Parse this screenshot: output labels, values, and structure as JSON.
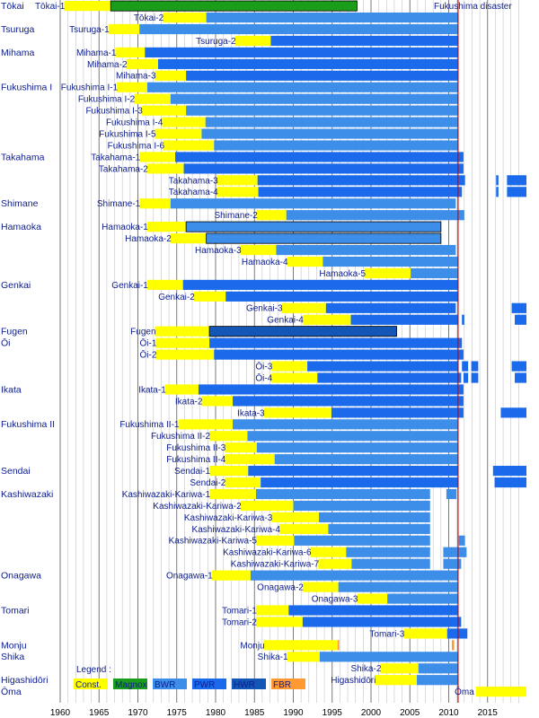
{
  "chart_data": {
    "type": "timeline",
    "xlim": [
      1960,
      2020
    ],
    "x_ticks": [
      1960,
      1965,
      1970,
      1975,
      1980,
      1985,
      1990,
      1995,
      2000,
      2005,
      2010,
      2015
    ],
    "grid": "vertical",
    "event": {
      "label": "Fukushima disaster",
      "x": 2011.2,
      "color": "#d00000"
    },
    "legend": {
      "title": "Legend :",
      "position": "bottom-left",
      "entries": [
        {
          "label": "Const.",
          "color": "#ffff00"
        },
        {
          "label": "Magnox",
          "color": "#1a9d1a"
        },
        {
          "label": "BWR",
          "color": "#3d8ee9"
        },
        {
          "label": "PWR",
          "color": "#1a6aeb"
        },
        {
          "label": "HWR",
          "color": "#1456b6"
        },
        {
          "label": "FBR",
          "color": "#ff9a33"
        }
      ]
    },
    "sites": [
      {
        "name": "Tōkai",
        "row": 0
      },
      {
        "name": "Tsuruga",
        "row": 2
      },
      {
        "name": "Mihama",
        "row": 4
      },
      {
        "name": "Fukushima I",
        "row": 7
      },
      {
        "name": "Takahama",
        "row": 13
      },
      {
        "name": "Shimane",
        "row": 17
      },
      {
        "name": "Hamaoka",
        "row": 19
      },
      {
        "name": "Genkai",
        "row": 24
      },
      {
        "name": "Fugen",
        "row": 28
      },
      {
        "name": "Ōi",
        "row": 29
      },
      {
        "name": "Ikata",
        "row": 33
      },
      {
        "name": "Fukushima II",
        "row": 36
      },
      {
        "name": "Sendai",
        "row": 40
      },
      {
        "name": "Kashiwazaki",
        "row": 42
      },
      {
        "name": "Onagawa",
        "row": 49
      },
      {
        "name": "Tomari",
        "row": 52
      },
      {
        "name": "Monju",
        "row": 55
      },
      {
        "name": "Shika",
        "row": 56
      },
      {
        "name": "Higashidōri",
        "row": 58
      },
      {
        "name": "Ōma",
        "row": 59
      }
    ],
    "units": [
      {
        "name": "Tōkai-1",
        "row": 0,
        "const": [
          1960.5,
          1966.5
        ],
        "ops": [
          [
            1966.5,
            1998.2
          ]
        ],
        "type": "Magnox",
        "dark": true
      },
      {
        "name": "Tōkai-2",
        "row": 1,
        "const": [
          1973.2,
          1978.8
        ],
        "ops": [
          [
            1978.8,
            2011.2
          ]
        ],
        "type": "BWR"
      },
      {
        "name": "Tsuruga-1",
        "row": 2,
        "const": [
          1966.2,
          1970.2
        ],
        "ops": [
          [
            1970.2,
            2011.2
          ]
        ],
        "type": "BWR"
      },
      {
        "name": "Tsuruga-2",
        "row": 3,
        "const": [
          1982.5,
          1987.1
        ],
        "ops": [
          [
            1987.1,
            2011.2
          ]
        ],
        "type": "PWR"
      },
      {
        "name": "Mihama-1",
        "row": 4,
        "const": [
          1967.1,
          1970.9
        ],
        "ops": [
          [
            1970.9,
            2011.2
          ]
        ],
        "type": "PWR"
      },
      {
        "name": "Mihama-2",
        "row": 5,
        "const": [
          1968.5,
          1972.6
        ],
        "ops": [
          [
            1972.6,
            2011.2
          ]
        ],
        "type": "PWR"
      },
      {
        "name": "Mihama-3",
        "row": 6,
        "const": [
          1972.2,
          1976.2
        ],
        "ops": [
          [
            1976.2,
            2011.2
          ]
        ],
        "type": "PWR"
      },
      {
        "name": "Fukushima I-1",
        "row": 7,
        "const": [
          1967.3,
          1971.2
        ],
        "ops": [
          [
            1971.2,
            2011.2
          ]
        ],
        "type": "BWR"
      },
      {
        "name": "Fukushima I-2",
        "row": 8,
        "const": [
          1969.5,
          1974.2
        ],
        "ops": [
          [
            1974.2,
            2011.2
          ]
        ],
        "type": "BWR"
      },
      {
        "name": "Fukushima I-3",
        "row": 9,
        "const": [
          1970.5,
          1976.2
        ],
        "ops": [
          [
            1976.2,
            2011.2
          ]
        ],
        "type": "BWR"
      },
      {
        "name": "Fukushima I-4",
        "row": 10,
        "const": [
          1973.1,
          1978.7
        ],
        "ops": [
          [
            1978.7,
            2011.2
          ]
        ],
        "type": "BWR"
      },
      {
        "name": "Fukushima I-5",
        "row": 11,
        "const": [
          1972.2,
          1978.2
        ],
        "ops": [
          [
            1978.2,
            2011.2
          ]
        ],
        "type": "BWR"
      },
      {
        "name": "Fukushima I-6",
        "row": 12,
        "const": [
          1973.3,
          1979.8
        ],
        "ops": [
          [
            1979.8,
            2011.2
          ]
        ],
        "type": "BWR"
      },
      {
        "name": "Takahama-1",
        "row": 13,
        "const": [
          1970.2,
          1974.8
        ],
        "ops": [
          [
            1974.8,
            2011.9
          ]
        ],
        "type": "PWR"
      },
      {
        "name": "Takahama-2",
        "row": 14,
        "const": [
          1971.2,
          1975.9
        ],
        "ops": [
          [
            1975.9,
            2011.9
          ]
        ],
        "type": "PWR"
      },
      {
        "name": "Takahama-3",
        "row": 15,
        "const": [
          1980.2,
          1985.4
        ],
        "ops": [
          [
            1985.4,
            2012.1
          ],
          [
            2016.1,
            2016.4
          ],
          [
            2017.5,
            2020
          ]
        ],
        "type": "PWR"
      },
      {
        "name": "Takahama-4",
        "row": 16,
        "const": [
          1980.2,
          1985.5
        ],
        "ops": [
          [
            1985.5,
            2011.7
          ],
          [
            2016.1,
            2016.4
          ],
          [
            2017.5,
            2020
          ]
        ],
        "type": "PWR"
      },
      {
        "name": "Shimane-1",
        "row": 17,
        "const": [
          1970.2,
          1974.2
        ],
        "ops": [
          [
            1974.2,
            2010.9
          ]
        ],
        "type": "BWR"
      },
      {
        "name": "Shimane-2",
        "row": 18,
        "const": [
          1985.3,
          1989.1
        ],
        "ops": [
          [
            1989.1,
            2012.0
          ]
        ],
        "type": "BWR"
      },
      {
        "name": "Hamaoka-1",
        "row": 19,
        "const": [
          1971.2,
          1976.2
        ],
        "ops": [
          [
            1976.2,
            2009.0
          ]
        ],
        "type": "BWR",
        "dark": true
      },
      {
        "name": "Hamaoka-2",
        "row": 20,
        "const": [
          1974.2,
          1978.8
        ],
        "ops": [
          [
            1978.8,
            2009.0
          ]
        ],
        "type": "BWR",
        "dark": true
      },
      {
        "name": "Hamaoka-3",
        "row": 21,
        "const": [
          1983.2,
          1987.8
        ],
        "ops": [
          [
            1987.8,
            2010.9
          ]
        ],
        "type": "BWR"
      },
      {
        "name": "Hamaoka-4",
        "row": 22,
        "const": [
          1989.2,
          1993.8
        ],
        "ops": [
          [
            1993.8,
            2011.2
          ]
        ],
        "type": "BWR"
      },
      {
        "name": "Hamaoka-5",
        "row": 23,
        "const": [
          1999.2,
          2005.1
        ],
        "ops": [
          [
            2005.1,
            2011.2
          ]
        ],
        "type": "BWR"
      },
      {
        "name": "Genkai-1",
        "row": 24,
        "const": [
          1971.2,
          1975.8
        ],
        "ops": [
          [
            1975.8,
            2011.2
          ]
        ],
        "type": "PWR"
      },
      {
        "name": "Genkai-2",
        "row": 25,
        "const": [
          1977.2,
          1981.3
        ],
        "ops": [
          [
            1981.3,
            2011.2
          ]
        ],
        "type": "PWR"
      },
      {
        "name": "Genkai-3",
        "row": 26,
        "const": [
          1988.5,
          1994.2
        ],
        "ops": [
          [
            1994.2,
            2010.9
          ],
          [
            2018.1,
            2020
          ]
        ],
        "type": "PWR"
      },
      {
        "name": "Genkai-4",
        "row": 27,
        "const": [
          1991.2,
          1997.4
        ],
        "ops": [
          [
            1997.4,
            2011.2
          ],
          [
            2011.7,
            2012.0
          ],
          [
            2018.5,
            2020
          ]
        ],
        "type": "PWR"
      },
      {
        "name": "Fugen",
        "row": 28,
        "const": [
          1972.2,
          1979.2
        ],
        "ops": [
          [
            1979.2,
            2003.3
          ]
        ],
        "type": "HWR",
        "dark": true
      },
      {
        "name": "Ōi-1",
        "row": 29,
        "const": [
          1972.3,
          1979.2
        ],
        "ops": [
          [
            1979.2,
            2011.7
          ]
        ],
        "type": "PWR"
      },
      {
        "name": "Ōi-2",
        "row": 30,
        "const": [
          1972.3,
          1979.8
        ],
        "ops": [
          [
            1979.8,
            2011.9
          ]
        ],
        "type": "PWR"
      },
      {
        "name": "Ōi-3",
        "row": 31,
        "const": [
          1987.2,
          1991.8
        ],
        "ops": [
          [
            1991.8,
            2011.2
          ],
          [
            2011.7,
            2012.5
          ],
          [
            2012.9,
            2013.8
          ],
          [
            2018.1,
            2020
          ]
        ],
        "type": "PWR"
      },
      {
        "name": "Ōi-4",
        "row": 32,
        "const": [
          1987.2,
          1993.1
        ],
        "ops": [
          [
            1993.1,
            2011.6
          ],
          [
            2011.9,
            2012.5
          ],
          [
            2012.9,
            2013.8
          ],
          [
            2018.5,
            2020
          ]
        ],
        "type": "PWR"
      },
      {
        "name": "Ikata-1",
        "row": 33,
        "const": [
          1973.5,
          1977.8
        ],
        "ops": [
          [
            1977.8,
            2011.9
          ]
        ],
        "type": "PWR"
      },
      {
        "name": "Ikata-2",
        "row": 34,
        "const": [
          1978.2,
          1982.2
        ],
        "ops": [
          [
            1982.2,
            2011.9
          ]
        ],
        "type": "PWR"
      },
      {
        "name": "Ikata-3",
        "row": 35,
        "const": [
          1986.2,
          1994.9
        ],
        "ops": [
          [
            1994.9,
            2011.9
          ],
          [
            2016.7,
            2020
          ]
        ],
        "type": "PWR"
      },
      {
        "name": "Fukushima II-1",
        "row": 36,
        "const": [
          1975.2,
          1982.2
        ],
        "ops": [
          [
            1982.2,
            2011.2
          ]
        ],
        "type": "BWR"
      },
      {
        "name": "Fukushima II-2",
        "row": 37,
        "const": [
          1979.2,
          1984.1
        ],
        "ops": [
          [
            1984.1,
            2011.2
          ]
        ],
        "type": "BWR"
      },
      {
        "name": "Fukushima II-3",
        "row": 38,
        "const": [
          1981.2,
          1985.3
        ],
        "ops": [
          [
            1985.3,
            2011.2
          ]
        ],
        "type": "BWR"
      },
      {
        "name": "Fukushima II-4",
        "row": 39,
        "const": [
          1981.2,
          1987.6
        ],
        "ops": [
          [
            1987.6,
            2011.2
          ]
        ],
        "type": "BWR"
      },
      {
        "name": "Sendai-1",
        "row": 40,
        "const": [
          1979.2,
          1984.2
        ],
        "ops": [
          [
            1984.2,
            2011.2
          ],
          [
            2015.7,
            2020
          ]
        ],
        "type": "PWR"
      },
      {
        "name": "Sendai-2",
        "row": 41,
        "const": [
          1981.2,
          1985.8
        ],
        "ops": [
          [
            1985.8,
            2011.2
          ],
          [
            2015.9,
            2020
          ]
        ],
        "type": "PWR"
      },
      {
        "name": "Kashiwazaki-Kariwa-1",
        "row": 42,
        "const": [
          1979.2,
          1985.2
        ],
        "ops": [
          [
            1985.2,
            2007.6
          ],
          [
            2009.7,
            2011.0
          ]
        ],
        "type": "BWR"
      },
      {
        "name": "Kashiwazaki-Kariwa-2",
        "row": 43,
        "const": [
          1983.2,
          1990.0
        ],
        "ops": [
          [
            1990.0,
            2007.6
          ]
        ],
        "type": "BWR"
      },
      {
        "name": "Kashiwazaki-Kariwa-3",
        "row": 44,
        "const": [
          1987.2,
          1993.3
        ],
        "ops": [
          [
            1993.3,
            2007.6
          ]
        ],
        "type": "BWR"
      },
      {
        "name": "Kashiwazaki-Kariwa-4",
        "row": 45,
        "const": [
          1988.2,
          1994.5
        ],
        "ops": [
          [
            1994.5,
            2007.6
          ]
        ],
        "type": "BWR"
      },
      {
        "name": "Kashiwazaki-Kariwa-5",
        "row": 46,
        "const": [
          1985.2,
          1990.1
        ],
        "ops": [
          [
            1990.1,
            2007.6
          ],
          [
            2011.3,
            2012.1
          ]
        ],
        "type": "BWR"
      },
      {
        "name": "Kashiwazaki-Kariwa-6",
        "row": 47,
        "const": [
          1992.2,
          1996.8
        ],
        "ops": [
          [
            1996.8,
            2007.6
          ],
          [
            2009.3,
            2012.3
          ]
        ],
        "type": "BWR"
      },
      {
        "name": "Kashiwazaki-Kariwa-7",
        "row": 48,
        "const": [
          1993.2,
          1997.5
        ],
        "ops": [
          [
            1997.5,
            2007.6
          ],
          [
            2009.3,
            2011.6
          ]
        ],
        "type": "BWR"
      },
      {
        "name": "Onagawa-1",
        "row": 49,
        "const": [
          1979.5,
          1984.5
        ],
        "ops": [
          [
            1984.5,
            2011.2
          ]
        ],
        "type": "BWR"
      },
      {
        "name": "Onagawa-2",
        "row": 50,
        "const": [
          1991.2,
          1995.8
        ],
        "ops": [
          [
            1995.8,
            2011.2
          ]
        ],
        "type": "BWR"
      },
      {
        "name": "Onagawa-3",
        "row": 51,
        "const": [
          1998.2,
          2002.1
        ],
        "ops": [
          [
            2002.1,
            2011.2
          ]
        ],
        "type": "BWR"
      },
      {
        "name": "Tomari-1",
        "row": 52,
        "const": [
          1985.2,
          1989.4
        ],
        "ops": [
          [
            1989.4,
            2011.2
          ]
        ],
        "type": "PWR"
      },
      {
        "name": "Tomari-2",
        "row": 53,
        "const": [
          1985.2,
          1991.2
        ],
        "ops": [
          [
            1991.2,
            2011.6
          ]
        ],
        "type": "PWR"
      },
      {
        "name": "Tomari-3",
        "row": 54,
        "const": [
          2004.2,
          2009.8
        ],
        "ops": [
          [
            2009.8,
            2012.4
          ]
        ],
        "type": "PWR"
      },
      {
        "name": "Monju",
        "row": 55,
        "const": [
          1986.2,
          1995.7
        ],
        "ops": [
          [
            1995.7,
            1995.9
          ],
          [
            2010.4,
            2010.7
          ]
        ],
        "type": "FBR"
      },
      {
        "name": "Shika-1",
        "row": 56,
        "const": [
          1989.2,
          1993.4
        ],
        "ops": [
          [
            1993.4,
            2011.2
          ]
        ],
        "type": "BWR"
      },
      {
        "name": "Shika-2",
        "row": 57,
        "const": [
          2001.2,
          2006.1
        ],
        "ops": [
          [
            2006.1,
            2011.2
          ]
        ],
        "type": "BWR"
      },
      {
        "name": "Higashidōri",
        "row": 58,
        "const": [
          2000.5,
          2005.9
        ],
        "ops": [
          [
            2005.9,
            2011.2
          ]
        ],
        "type": "BWR"
      },
      {
        "name": "Ōma",
        "row": 59,
        "const": [
          2013.5,
          2020
        ],
        "ops": [],
        "type": "BWR"
      }
    ]
  }
}
